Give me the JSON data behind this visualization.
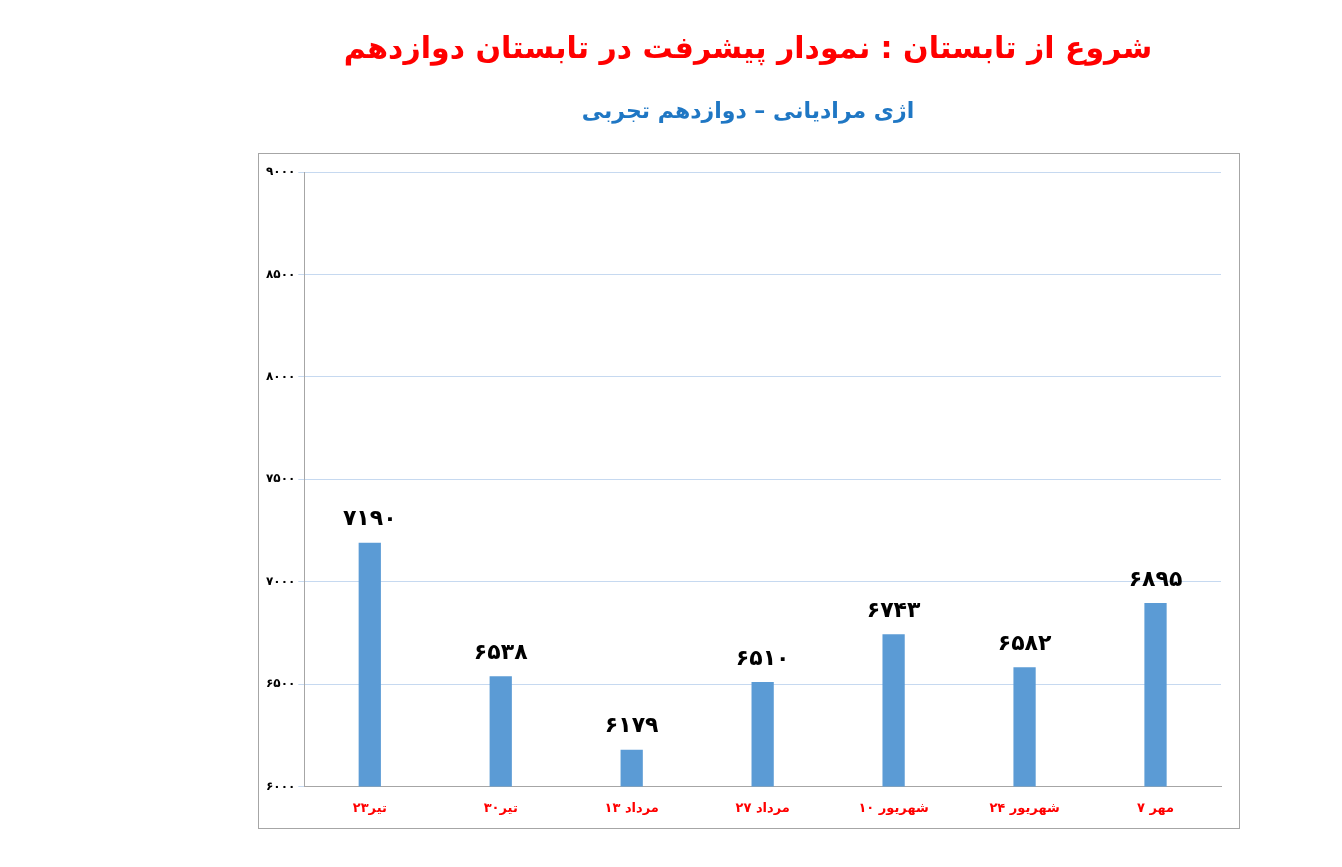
{
  "chart_data": {
    "type": "bar",
    "title": "شروع از تابستان : نمودار پیشرفت در تابستان دوازدهم",
    "subtitle": "اژی مرادیانی – دوازدهم تجربی",
    "categories": [
      "۲۳تیر",
      "۳۰تیر",
      "۱۳ مرداد",
      "۲۷ مرداد",
      "۱۰ شهریور",
      "۲۴ شهریور",
      "۷ مهر"
    ],
    "values": [
      7190,
      6538,
      6179,
      6510,
      6743,
      6582,
      6895
    ],
    "value_labels": [
      "۷۱۹۰",
      "۶۵۳۸",
      "۶۱۷۹",
      "۶۵۱۰",
      "۶۷۴۳",
      "۶۵۸۲",
      "۶۸۹۵"
    ],
    "color": "#5b9bd5",
    "ylim": [
      6000,
      9000
    ],
    "yticks": [
      {
        "value": 6000,
        "label": "۶۰۰۰"
      },
      {
        "value": 6500,
        "label": "۶۵۰۰"
      },
      {
        "value": 7000,
        "label": "۷۰۰۰"
      },
      {
        "value": 7500,
        "label": "۷۵۰۰"
      },
      {
        "value": 8000,
        "label": "۸۰۰۰"
      },
      {
        "value": 8500,
        "label": "۸۵۰۰"
      },
      {
        "value": 9000,
        "label": "۹۰۰۰"
      }
    ],
    "grid": "y",
    "legend": false
  }
}
